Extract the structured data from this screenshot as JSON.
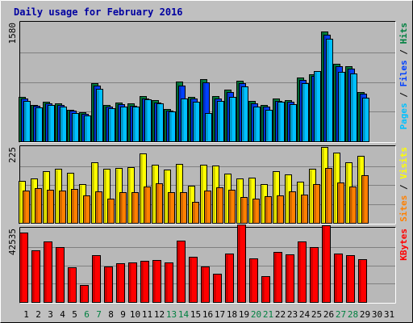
{
  "chart_data": {
    "type": "bar",
    "title": "Daily usage for February 2016",
    "colors": {
      "background": "#c0c0c0",
      "plot_background": "#b8b8b8",
      "title": "#0000a0",
      "hits": "#008040",
      "files": "#0040ff",
      "pages": "#00c0ff",
      "visits": "#ffff00",
      "sites": "#ff8000",
      "kbytes": "#ff0000",
      "weekend_day": "#008040",
      "weekday": "#000000"
    },
    "x_labels": [
      "1",
      "2",
      "3",
      "4",
      "5",
      "6",
      "7",
      "8",
      "9",
      "10",
      "11",
      "12",
      "13",
      "14",
      "15",
      "16",
      "17",
      "18",
      "19",
      "20",
      "21",
      "22",
      "23",
      "24",
      "25",
      "26",
      "27",
      "28",
      "29",
      "30",
      "31"
    ],
    "weekend_days": [
      6,
      7,
      13,
      14,
      20,
      21,
      27,
      28
    ],
    "panels": [
      {
        "id": "hits-files-pages",
        "ymax": 1580,
        "ymax_label": "1580",
        "legend": [
          {
            "text": "Pages",
            "color": "#00c0ff"
          },
          {
            "text": " / ",
            "color": "#000000"
          },
          {
            "text": "Files",
            "color": "#0040ff"
          },
          {
            "text": " / ",
            "color": "#000000"
          },
          {
            "text": "Hits",
            "color": "#008040"
          }
        ],
        "series": [
          {
            "name": "Hits",
            "color": "#008040",
            "values": [
              596,
              488,
              523,
              507,
              420,
              385,
              776,
              489,
              515,
              501,
              598,
              550,
              432,
              794,
              596,
              826,
              598,
              686,
              809,
              533,
              484,
              568,
              551,
              850,
              893,
              1462,
              1027,
              997,
              658,
              0,
              0
            ]
          },
          {
            "name": "Files",
            "color": "#0040ff",
            "values": [
              569,
              468,
              504,
              480,
              408,
              361,
              740,
              457,
              491,
              476,
              571,
              521,
              410,
              738,
              570,
              786,
              570,
              654,
              773,
              509,
              465,
              539,
              526,
              821,
              867,
              1418,
              996,
              964,
              636,
              0,
              0
            ]
          },
          {
            "name": "Pages",
            "color": "#00c0ff",
            "values": [
              541,
              455,
              483,
              464,
              381,
              344,
              696,
              441,
              467,
              459,
              556,
              503,
              396,
              568,
              525,
              381,
              541,
              590,
              735,
              459,
              424,
              526,
              497,
              772,
              934,
              1369,
              928,
              900,
              581,
              0,
              0
            ]
          }
        ]
      },
      {
        "id": "visits-sites",
        "ymax": 225,
        "ymax_label": "225",
        "legend": [
          {
            "text": "Sites",
            "color": "#ff8000"
          },
          {
            "text": " / ",
            "color": "#000000"
          },
          {
            "text": "Visits",
            "color": "#ffff00"
          }
        ],
        "series": [
          {
            "name": "Visits",
            "color": "#ffff00",
            "values": [
              124,
              131,
              152,
              161,
              148,
              114,
              179,
              161,
              163,
              164,
              205,
              172,
              158,
              175,
              111,
              172,
              169,
              147,
              131,
              133,
              114,
              154,
              143,
              123,
              160,
              225,
              209,
              179,
              198,
              0,
              0
            ]
          },
          {
            "name": "Sites",
            "color": "#ff8000",
            "values": [
              95,
              103,
              98,
              96,
              101,
              82,
              94,
              72,
              92,
              91,
              108,
              117,
              91,
              91,
              63,
              95,
              105,
              99,
              77,
              73,
              79,
              81,
              94,
              84,
              115,
              162,
              119,
              107,
              142,
              0,
              0
            ]
          }
        ]
      },
      {
        "id": "kbytes",
        "ymax": 42535,
        "ymax_label": "42535",
        "legend": [
          {
            "text": "KBytes",
            "color": "#ff0000"
          }
        ],
        "series": [
          {
            "name": "KBytes",
            "color": "#ff0000",
            "values": [
              40096,
              29963,
              35183,
              31925,
              20312,
              10003,
              27051,
              20697,
              22362,
              22787,
              23786,
              24105,
              23059,
              35430,
              26036,
              20678,
              16137,
              28015,
              45031,
              25073,
              14855,
              28996,
              27436,
              35107,
              31922,
              44225,
              27944,
              27089,
              24588,
              0,
              0
            ]
          }
        ]
      }
    ]
  }
}
